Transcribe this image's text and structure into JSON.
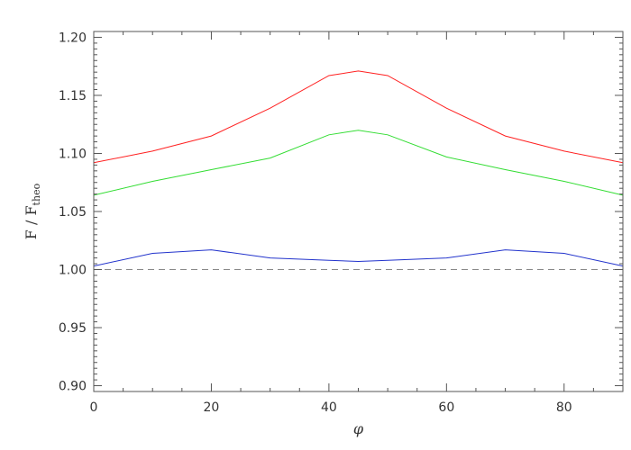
{
  "chart_data": {
    "type": "line",
    "xlabel": "φ",
    "ylabel_main": "F / F",
    "ylabel_sub": "theo",
    "xlim": [
      0,
      90
    ],
    "ylim": [
      0.895,
      1.205
    ],
    "grid": false,
    "xticks": [
      0,
      20,
      40,
      60,
      80
    ],
    "yticks": [
      0.9,
      0.95,
      1.0,
      1.05,
      1.1,
      1.15,
      1.2
    ],
    "x": [
      0,
      10,
      20,
      30,
      40,
      45,
      50,
      60,
      70,
      80,
      90
    ],
    "series": [
      {
        "color": "#ff2020",
        "values": [
          1.092,
          1.102,
          1.115,
          1.139,
          1.167,
          1.171,
          1.167,
          1.139,
          1.115,
          1.102,
          1.092
        ]
      },
      {
        "color": "#33dd33",
        "values": [
          1.064,
          1.076,
          1.086,
          1.096,
          1.116,
          1.12,
          1.116,
          1.097,
          1.086,
          1.076,
          1.064
        ]
      },
      {
        "color": "#2233cc",
        "values": [
          1.003,
          1.014,
          1.017,
          1.01,
          1.008,
          1.007,
          1.008,
          1.01,
          1.017,
          1.014,
          1.003
        ]
      }
    ],
    "reference_line": {
      "y": 1.0,
      "style": "dashed",
      "color": "#888888"
    }
  }
}
